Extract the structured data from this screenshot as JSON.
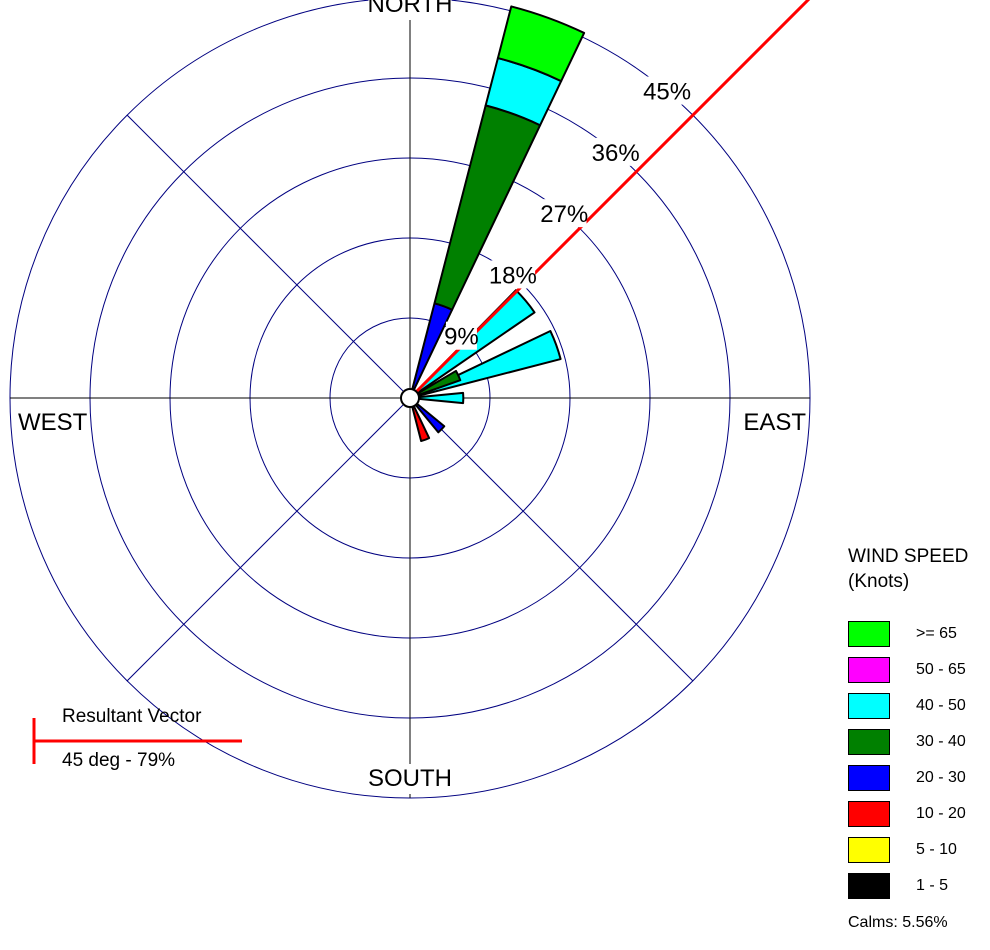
{
  "chart_data": {
    "type": "wind-rose",
    "directions": [
      "NORTH",
      "EAST",
      "SOUTH",
      "WEST"
    ],
    "ring_values": [
      9,
      18,
      27,
      36,
      45
    ],
    "ring_labels": [
      "9%",
      "18%",
      "27%",
      "36%",
      "45%"
    ],
    "radial_max": 45,
    "grid": true,
    "legend": {
      "title": "WIND SPEED",
      "subtitle": "(Knots)",
      "placement": "bottom-right",
      "bins": [
        {
          "label": ">= 65",
          "color": "#00ff00"
        },
        {
          "label": "50 - 65",
          "color": "#ff00ff"
        },
        {
          "label": "40 - 50",
          "color": "#00ffff"
        },
        {
          "label": "30 - 40",
          "color": "#008000"
        },
        {
          "label": "20 - 30",
          "color": "#0000ff"
        },
        {
          "label": "10 - 20",
          "color": "#ff0000"
        },
        {
          "label": "5 - 10",
          "color": "#ffff00"
        },
        {
          "label": "1 - 5",
          "color": "#000000"
        }
      ]
    },
    "petals": [
      {
        "direction_deg": 20,
        "segments": [
          {
            "bin": "20 - 30",
            "from": 0,
            "to": 11
          },
          {
            "bin": "30 - 40",
            "from": 11,
            "to": 34
          },
          {
            "bin": "40 - 50",
            "from": 34,
            "to": 39.5
          },
          {
            "bin": ">= 65",
            "from": 39.5,
            "to": 45.5
          }
        ]
      },
      {
        "direction_deg": 50,
        "segments": [
          {
            "bin": "40 - 50",
            "from": 0,
            "to": 17
          }
        ]
      },
      {
        "direction_deg": 70,
        "segments": [
          {
            "bin": "40 - 50",
            "from": 0,
            "to": 17.5
          }
        ]
      },
      {
        "direction_deg": 65,
        "segments": [
          {
            "bin": "30 - 40",
            "from": 0,
            "to": 6
          }
        ]
      },
      {
        "direction_deg": 90,
        "segments": [
          {
            "bin": "40 - 50",
            "from": 0,
            "to": 6
          }
        ]
      },
      {
        "direction_deg": 135,
        "segments": [
          {
            "bin": "20 - 30",
            "from": 0,
            "to": 5
          }
        ]
      },
      {
        "direction_deg": 160,
        "segments": [
          {
            "bin": "10 - 20",
            "from": 0,
            "to": 5
          }
        ]
      }
    ],
    "resultant_vector": {
      "direction_deg": 45,
      "percent": 79
    },
    "calms_percent": 5.56
  },
  "resultant_vector": {
    "title": "Resultant Vector",
    "value": "45 deg - 79%"
  },
  "calms_label": "Calms: 5.56%",
  "colors": {
    "grid": "#000080",
    "vector": "#ff0000"
  }
}
